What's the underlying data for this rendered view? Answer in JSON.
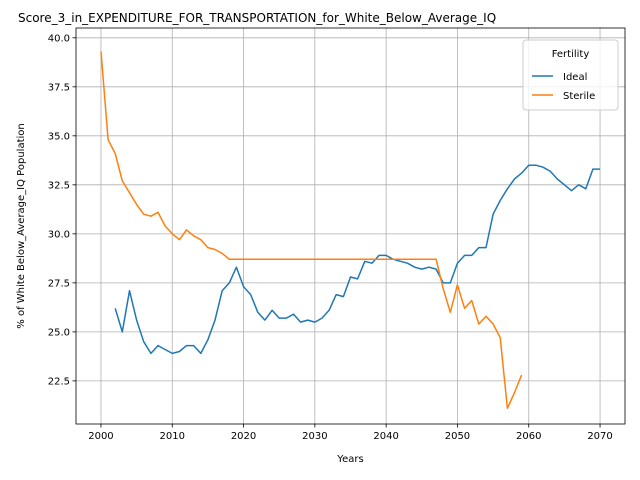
{
  "chart_data": {
    "type": "line",
    "title": "Score_3_in_EXPENDITURE_FOR_TRANSPORTATION_for_White_Below_Average_IQ",
    "xlabel": "Years",
    "ylabel": "% of White Below_Average_IQ Population",
    "xlim": [
      1996.5,
      2073.5
    ],
    "ylim": [
      20.3,
      40.5
    ],
    "xticks": [
      2000,
      2010,
      2020,
      2030,
      2040,
      2050,
      2060,
      2070
    ],
    "yticks": [
      22.5,
      25.0,
      27.5,
      30.0,
      32.5,
      35.0,
      37.5,
      40.0
    ],
    "xtick_labels": [
      "2000",
      "2010",
      "2020",
      "2030",
      "2040",
      "2050",
      "2060",
      "2070"
    ],
    "ytick_labels": [
      "22.5",
      "25.0",
      "27.5",
      "30.0",
      "32.5",
      "35.0",
      "37.5",
      "40.0"
    ],
    "grid": true,
    "legend_title": "Fertility",
    "legend_position": "top-right",
    "series": [
      {
        "name": "Ideal",
        "color": "#1f77b4",
        "x": [
          2002,
          2003,
          2004,
          2005,
          2006,
          2007,
          2008,
          2009,
          2010,
          2011,
          2012,
          2013,
          2014,
          2015,
          2016,
          2017,
          2018,
          2019,
          2020,
          2021,
          2022,
          2023,
          2024,
          2025,
          2026,
          2027,
          2028,
          2029,
          2030,
          2031,
          2032,
          2033,
          2034,
          2035,
          2036,
          2037,
          2038,
          2039,
          2040,
          2041,
          2042,
          2043,
          2044,
          2045,
          2046,
          2047,
          2048,
          2049,
          2050,
          2051,
          2052,
          2053,
          2054,
          2055,
          2056,
          2057,
          2058,
          2059,
          2060,
          2061,
          2062,
          2063,
          2064,
          2065,
          2066,
          2067,
          2068,
          2069,
          2070
        ],
        "values": [
          26.2,
          25.0,
          27.1,
          25.6,
          24.5,
          23.9,
          24.3,
          24.1,
          23.9,
          24.0,
          24.3,
          24.3,
          23.9,
          24.6,
          25.6,
          27.1,
          27.5,
          28.3,
          27.3,
          26.9,
          26.0,
          25.6,
          26.1,
          25.7,
          25.7,
          25.9,
          25.5,
          25.6,
          25.5,
          25.7,
          26.1,
          26.9,
          26.8,
          27.8,
          27.7,
          28.6,
          28.5,
          28.9,
          28.9,
          28.7,
          28.6,
          28.5,
          28.3,
          28.2,
          28.3,
          28.2,
          27.5,
          27.5,
          28.5,
          28.9,
          28.9,
          29.3,
          29.3,
          31.0,
          31.7,
          32.3,
          32.8,
          33.1,
          33.5,
          33.5,
          33.4,
          33.2,
          32.8,
          32.5,
          32.2,
          32.5,
          32.3,
          33.3,
          33.3
        ]
      },
      {
        "name": "Sterile",
        "color": "#ff7f0e",
        "x": [
          2000,
          2001,
          2002,
          2003,
          2004,
          2005,
          2006,
          2007,
          2008,
          2009,
          2010,
          2011,
          2012,
          2013,
          2014,
          2015,
          2016,
          2017,
          2018,
          2019,
          2020,
          2021,
          2022,
          2023,
          2024,
          2025,
          2026,
          2027,
          2028,
          2029,
          2030,
          2031,
          2032,
          2033,
          2034,
          2035,
          2036,
          2037,
          2038,
          2039,
          2040,
          2041,
          2042,
          2043,
          2044,
          2045,
          2046,
          2047,
          2048,
          2049,
          2050,
          2051,
          2052,
          2053,
          2054,
          2055,
          2056,
          2057,
          2058,
          2059
        ],
        "values": [
          39.3,
          34.8,
          34.1,
          32.7,
          32.1,
          31.5,
          31.0,
          30.9,
          31.1,
          30.4,
          30.0,
          29.7,
          30.2,
          29.9,
          29.7,
          29.3,
          29.2,
          29.0,
          28.7,
          28.7,
          28.7,
          28.7,
          28.7,
          28.7,
          28.7,
          28.7,
          28.7,
          28.7,
          28.7,
          28.7,
          28.7,
          28.7,
          28.7,
          28.7,
          28.7,
          28.7,
          28.7,
          28.7,
          28.7,
          28.7,
          28.7,
          28.7,
          28.7,
          28.7,
          28.7,
          28.7,
          28.7,
          28.7,
          27.2,
          26.0,
          27.4,
          26.2,
          26.6,
          25.4,
          25.8,
          25.4,
          24.7,
          21.1,
          21.9,
          22.8
        ]
      }
    ]
  }
}
